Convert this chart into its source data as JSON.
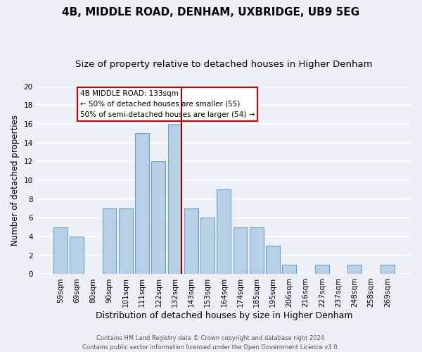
{
  "title": "4B, MIDDLE ROAD, DENHAM, UXBRIDGE, UB9 5EG",
  "subtitle": "Size of property relative to detached houses in Higher Denham",
  "xlabel": "Distribution of detached houses by size in Higher Denham",
  "ylabel": "Number of detached properties",
  "footer_line1": "Contains HM Land Registry data © Crown copyright and database right 2024.",
  "footer_line2": "Contains public sector information licensed under the Open Government Licence v3.0.",
  "bar_labels": [
    "59sqm",
    "69sqm",
    "80sqm",
    "90sqm",
    "101sqm",
    "111sqm",
    "122sqm",
    "132sqm",
    "143sqm",
    "153sqm",
    "164sqm",
    "174sqm",
    "185sqm",
    "195sqm",
    "206sqm",
    "216sqm",
    "227sqm",
    "237sqm",
    "248sqm",
    "258sqm",
    "269sqm"
  ],
  "bar_values": [
    5,
    4,
    0,
    7,
    7,
    15,
    12,
    16,
    7,
    6,
    9,
    5,
    5,
    3,
    1,
    0,
    1,
    0,
    1,
    0,
    1
  ],
  "bar_color": "#b8cfe8",
  "bar_edge_color": "#6fa0c8",
  "highlight_index": 7,
  "highlight_line_color": "#8b0000",
  "annotation_title": "4B MIDDLE ROAD: 133sqm",
  "annotation_line1": "← 50% of detached houses are smaller (55)",
  "annotation_line2": "50% of semi-detached houses are larger (54) →",
  "annotation_box_color": "#ffffff",
  "annotation_box_edge": "#cc0000",
  "ylim": [
    0,
    20
  ],
  "yticks": [
    0,
    2,
    4,
    6,
    8,
    10,
    12,
    14,
    16,
    18,
    20
  ],
  "bg_color": "#edf1f7",
  "grid_color": "#ffffff",
  "title_fontsize": 11,
  "subtitle_fontsize": 9.5,
  "xlabel_fontsize": 9,
  "ylabel_fontsize": 8.5,
  "tick_fontsize": 7.5,
  "ann_fontsize": 7.5
}
